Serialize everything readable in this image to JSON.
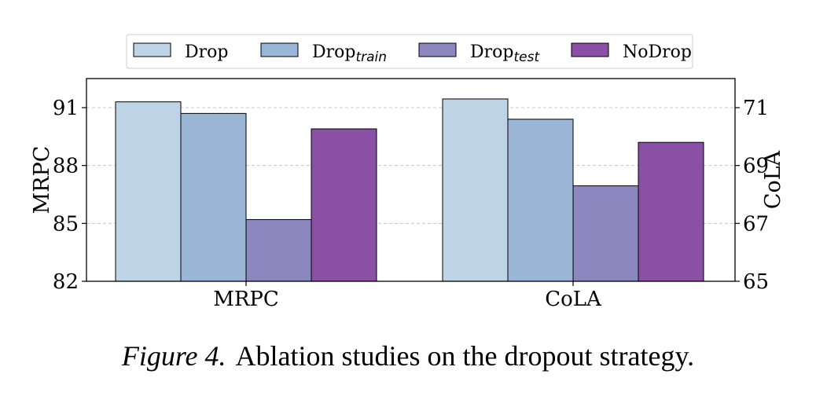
{
  "chart_data": {
    "type": "bar",
    "categories": [
      "MRPC",
      "CoLA"
    ],
    "series": [
      {
        "name": "Drop",
        "sub": "",
        "color": "#bfd3e6",
        "values": [
          91.3,
          71.3
        ]
      },
      {
        "name": "Drop",
        "sub": "train",
        "color": "#9ab5d6",
        "values": [
          90.7,
          70.6
        ]
      },
      {
        "name": "Drop",
        "sub": "test",
        "color": "#8c87bf",
        "values": [
          85.2,
          68.3
        ]
      },
      {
        "name": "NoDrop",
        "sub": "",
        "color": "#8a50a6",
        "values": [
          89.9,
          69.8
        ]
      }
    ],
    "ylabel_left": "MRPC",
    "ylabel_right": "CoLA",
    "ylim_left": [
      82,
      91
    ],
    "ylim_right": [
      65,
      71
    ],
    "yticks_left": [
      "82",
      "85",
      "88",
      "91"
    ],
    "yticks_right": [
      "65",
      "67",
      "69",
      "71"
    ],
    "grid": true,
    "legend_position": "top"
  },
  "caption": {
    "figure_label": "Figure 4.",
    "text": "Ablation studies on the dropout strategy."
  }
}
